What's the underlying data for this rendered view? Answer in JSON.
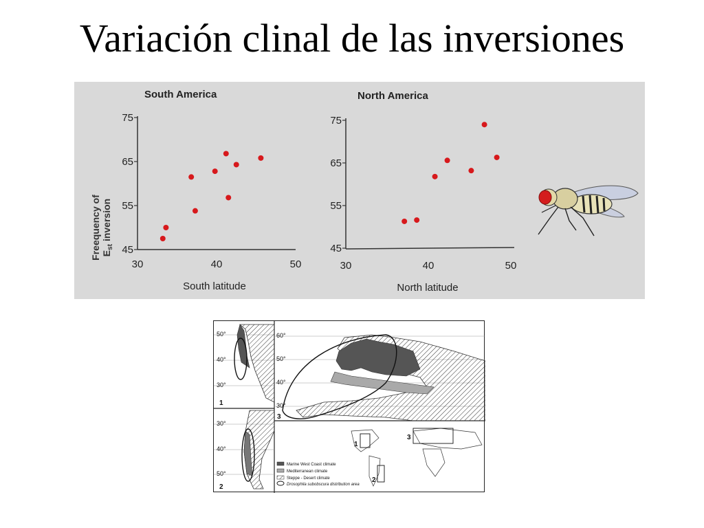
{
  "slide": {
    "title": "Variación clinal de las inversiones"
  },
  "chart_data": [
    {
      "type": "scatter",
      "title": "South America",
      "xlabel": "South latitude",
      "ylabel_line1": "Freequency of",
      "ylabel_line2": "E",
      "ylabel_sub": "st",
      "ylabel_line2_rest": " inversion",
      "xlim": [
        30,
        50
      ],
      "ylim": [
        45,
        75
      ],
      "xticks": [
        "30",
        "40",
        "50"
      ],
      "yticks": [
        "75",
        "65",
        "55",
        "45"
      ],
      "point_color": "#d7191c",
      "points": [
        {
          "x": 33.2,
          "y": 47.5
        },
        {
          "x": 33.6,
          "y": 50.0
        },
        {
          "x": 36.8,
          "y": 61.5
        },
        {
          "x": 37.3,
          "y": 53.8
        },
        {
          "x": 39.8,
          "y": 62.8
        },
        {
          "x": 41.2,
          "y": 66.8
        },
        {
          "x": 41.5,
          "y": 56.8
        },
        {
          "x": 42.5,
          "y": 64.3
        },
        {
          "x": 45.6,
          "y": 65.8
        }
      ]
    },
    {
      "type": "scatter",
      "title": "North America",
      "xlabel": "North latitude",
      "xlim": [
        30,
        50
      ],
      "ylim": [
        45,
        75
      ],
      "xticks": [
        "30",
        "40",
        "50"
      ],
      "yticks": [
        "75",
        "65",
        "55",
        "45"
      ],
      "point_color": "#d7191c",
      "points": [
        {
          "x": 37.1,
          "y": 51.3
        },
        {
          "x": 38.6,
          "y": 51.6
        },
        {
          "x": 40.8,
          "y": 61.8
        },
        {
          "x": 42.3,
          "y": 65.6
        },
        {
          "x": 45.2,
          "y": 63.2
        },
        {
          "x": 46.8,
          "y": 74.0
        },
        {
          "x": 48.3,
          "y": 66.3
        }
      ]
    }
  ],
  "map": {
    "inset_labels": [
      "1",
      "2",
      "3"
    ],
    "lat_labels_panel1": [
      "50°",
      "40°",
      "30°"
    ],
    "lat_labels_panel2": [
      "30°",
      "40°",
      "50°"
    ],
    "lat_labels_panel3": [
      "60°",
      "50°",
      "40°",
      "30°"
    ],
    "legend": [
      "Marine West Coast climate",
      "Mediterranean climate",
      "Steppe - Desert climate",
      "Drosophila subobscura distribution area"
    ],
    "colors": {
      "marine": "#555555",
      "mediterranean": "#a9a9a9",
      "steppe": "#ffffff"
    }
  },
  "fly_icon": "fruit-fly-drawing"
}
